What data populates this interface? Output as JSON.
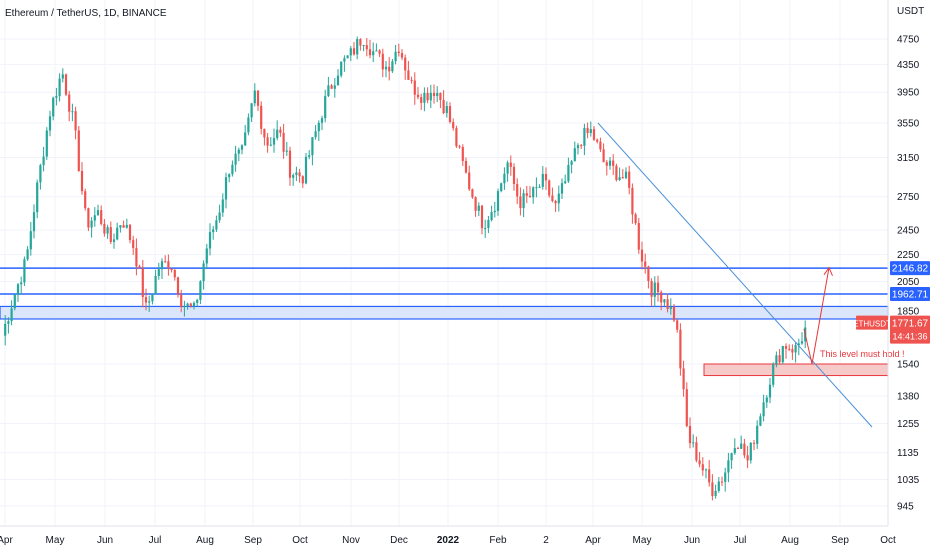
{
  "header": {
    "title": "Ethereum / TetherUS, 1D, BINANCE",
    "currency": "USDT"
  },
  "colors": {
    "up": "#26a69a",
    "down": "#ef5350",
    "level": "#2962ff",
    "zone_fill": "#dbe6fb",
    "support": "#e8363c",
    "support_fill": "#f7caca",
    "trendline": "#4a90d9"
  },
  "chart_data": {
    "type": "candlestick",
    "title": "Ethereum / TetherUS, 1D, BINANCE",
    "ylabel": "USDT",
    "ylim": [
      850,
      5000
    ],
    "x_ticks": [
      "Apr",
      "May",
      "Jun",
      "Jul",
      "Aug",
      "Sep",
      "Oct",
      "Nov",
      "Dec",
      "2022",
      "Feb",
      "2",
      "Apr",
      "May",
      "Jun",
      "Jul",
      "Aug",
      "Sep",
      "Oct"
    ],
    "y_ticks": [
      945,
      1035,
      1135,
      1255,
      1380,
      1540,
      1850,
      2050,
      2250,
      2450,
      2750,
      3150,
      3550,
      3950,
      4350,
      4750
    ],
    "anchors": [
      [
        "Apr",
        1700
      ],
      [
        "Apr",
        1950
      ],
      [
        "Apr",
        2200
      ],
      [
        "May",
        2900
      ],
      [
        "May",
        3700
      ],
      [
        "May",
        4250
      ],
      [
        "May",
        3500
      ],
      [
        "May",
        2500
      ],
      [
        "Jun",
        2600
      ],
      [
        "Jun",
        2350
      ],
      [
        "Jun",
        2550
      ],
      [
        "Jun",
        2300
      ],
      [
        "Jul",
        1850
      ],
      [
        "Jul",
        2150
      ],
      [
        "Jul",
        2200
      ],
      [
        "Jul",
        1900
      ],
      [
        "Jul",
        1850
      ],
      [
        "Aug",
        2300
      ],
      [
        "Aug",
        2600
      ],
      [
        "Aug",
        3100
      ],
      [
        "Aug",
        3200
      ],
      [
        "Sep",
        3950
      ],
      [
        "Sep",
        3300
      ],
      [
        "Sep",
        3450
      ],
      [
        "Sep",
        3000
      ],
      [
        "Oct",
        2950
      ],
      [
        "Oct",
        3400
      ],
      [
        "Oct",
        3900
      ],
      [
        "Oct",
        4300
      ],
      [
        "Nov",
        4500
      ],
      [
        "Nov",
        4800
      ],
      [
        "Nov",
        4500
      ],
      [
        "Nov",
        4300
      ],
      [
        "Dec",
        4650
      ],
      [
        "Dec",
        4050
      ],
      [
        "Dec",
        3900
      ],
      [
        "Dec",
        4000
      ],
      [
        "2022",
        3700
      ],
      [
        "2022",
        3200
      ],
      [
        "2022",
        2800
      ],
      [
        "Feb",
        2500
      ],
      [
        "Feb",
        2700
      ],
      [
        "Feb",
        3100
      ],
      [
        "Feb",
        2700
      ],
      [
        "2",
        2750
      ],
      [
        "2",
        2900
      ],
      [
        "2",
        2650
      ],
      [
        "2",
        2950
      ],
      [
        "Apr",
        3350
      ],
      [
        "Apr",
        3450
      ],
      [
        "Apr",
        3100
      ],
      [
        "Apr",
        3000
      ],
      [
        "May",
        2900
      ],
      [
        "May",
        2300
      ],
      [
        "May",
        2000
      ],
      [
        "May",
        1950
      ],
      [
        "Jun",
        1800
      ],
      [
        "Jun",
        1200
      ],
      [
        "Jun",
        1100
      ],
      [
        "Jun",
        1000
      ],
      [
        "Jul",
        1050
      ],
      [
        "Jul",
        1200
      ],
      [
        "Jul",
        1100
      ],
      [
        "Jul",
        1300
      ],
      [
        "Jul",
        1500
      ],
      [
        "Aug",
        1650
      ],
      [
        "Aug",
        1620
      ],
      [
        "Aug",
        1770
      ]
    ],
    "annotations": [
      {
        "type": "horizontal_line",
        "y": 2146.82,
        "label": "2146.82"
      },
      {
        "type": "horizontal_line",
        "y": 1962.71,
        "label": "1962.71"
      },
      {
        "type": "zone",
        "y_range": [
          1800,
          1880
        ]
      },
      {
        "type": "support_zone",
        "y_range": [
          1480,
          1540
        ],
        "text": "This level must hold !"
      },
      {
        "type": "trendline",
        "from": [
          "Apr",
          3550
        ],
        "to": [
          "Sep",
          1240
        ]
      },
      {
        "type": "arrow",
        "from": [
          "Aug",
          1540
        ],
        "to": [
          "Sep",
          2150
        ]
      }
    ],
    "current_price": {
      "symbol": "ETHUSDT",
      "value": "1771.67",
      "countdown": "14:41:36"
    }
  }
}
